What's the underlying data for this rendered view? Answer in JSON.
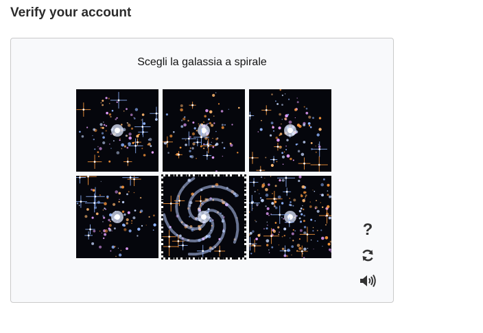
{
  "page": {
    "title": "Verify your account"
  },
  "captcha": {
    "prompt": "Scegli la galassia a spirale",
    "selected_index": 4,
    "tiles": [
      {
        "id": "tile-1",
        "icon": "galaxy-irregular-image",
        "selected": false
      },
      {
        "id": "tile-2",
        "icon": "galaxy-irregular-image",
        "selected": false
      },
      {
        "id": "tile-3",
        "icon": "galaxy-irregular-image",
        "selected": false
      },
      {
        "id": "tile-4",
        "icon": "galaxy-irregular-image",
        "selected": false
      },
      {
        "id": "tile-5",
        "icon": "galaxy-spiral-image",
        "selected": true
      },
      {
        "id": "tile-6",
        "icon": "galaxy-cluster-image",
        "selected": false
      }
    ],
    "tools": {
      "help_label": "?",
      "help_icon": "help-icon",
      "refresh_icon": "refresh-icon",
      "audio_icon": "speaker-icon"
    }
  },
  "colors": {
    "panel_bg": "#f8f9fb",
    "panel_border": "#c9c9c9",
    "star_blue": "#8fb4ff",
    "star_orange": "#ff9a3c"
  }
}
